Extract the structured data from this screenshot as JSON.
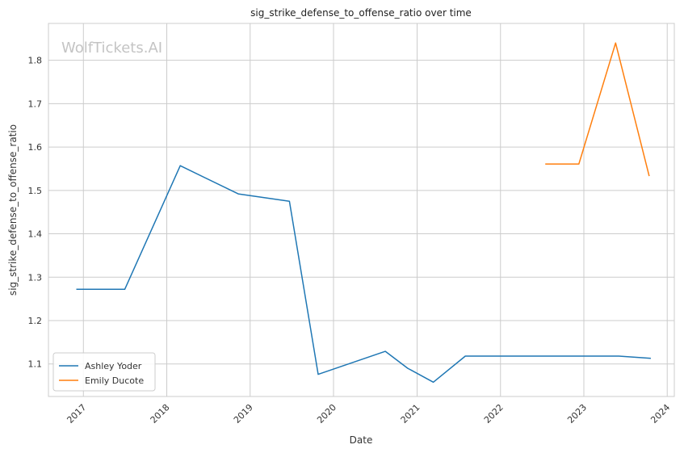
{
  "chart_data": {
    "type": "line",
    "title": "sig_strike_defense_to_offense_ratio over time",
    "xlabel": "Date",
    "ylabel": "sig_strike_defense_to_offense_ratio",
    "watermark": "WolfTickets.AI",
    "xlim": [
      "2016-08-01",
      "2024-02-01"
    ],
    "ylim": [
      1.025,
      1.885
    ],
    "x_ticks": [
      "2017",
      "2018",
      "2019",
      "2020",
      "2021",
      "2022",
      "2023",
      "2024"
    ],
    "y_ticks": [
      "1.1",
      "1.2",
      "1.3",
      "1.4",
      "1.5",
      "1.6",
      "1.7",
      "1.8"
    ],
    "grid": true,
    "legend_position": "lower-left",
    "series": [
      {
        "name": "Ashley Yoder",
        "color": "#1f77b4",
        "points": [
          {
            "x": "2016-12-01",
            "y": 1.272
          },
          {
            "x": "2017-07-01",
            "y": 1.272
          },
          {
            "x": "2018-03-01",
            "y": 1.557
          },
          {
            "x": "2018-11-10",
            "y": 1.492
          },
          {
            "x": "2019-06-22",
            "y": 1.475
          },
          {
            "x": "2019-10-26",
            "y": 1.076
          },
          {
            "x": "2020-08-15",
            "y": 1.129
          },
          {
            "x": "2020-11-21",
            "y": 1.09
          },
          {
            "x": "2021-03-13",
            "y": 1.058
          },
          {
            "x": "2021-07-31",
            "y": 1.118
          },
          {
            "x": "2023-06-03",
            "y": 1.118
          },
          {
            "x": "2023-10-21",
            "y": 1.113
          }
        ]
      },
      {
        "name": "Emily Ducote",
        "color": "#ff7f0e",
        "points": [
          {
            "x": "2022-07-16",
            "y": 1.561
          },
          {
            "x": "2022-12-10",
            "y": 1.561
          },
          {
            "x": "2023-05-20",
            "y": 1.84
          },
          {
            "x": "2023-10-14",
            "y": 1.533
          }
        ]
      }
    ]
  }
}
